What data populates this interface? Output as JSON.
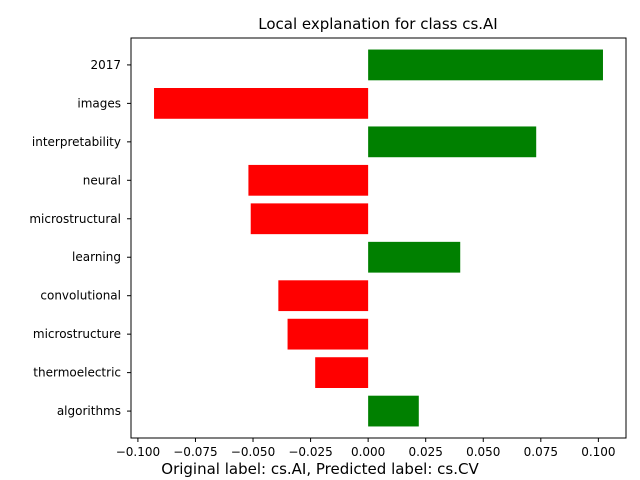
{
  "chart_data": {
    "type": "bar",
    "orientation": "horizontal",
    "title": "Local explanation for class cs.AI",
    "xlabel": "",
    "ylabel": "",
    "categories": [
      "2017",
      "images",
      "interpretability",
      "neural",
      "microstructural",
      "learning",
      "convolutional",
      "microstructure",
      "thermoelectric",
      "algorithms"
    ],
    "values": [
      0.102,
      -0.093,
      0.073,
      -0.052,
      -0.051,
      0.04,
      -0.039,
      -0.035,
      -0.023,
      0.022
    ],
    "xlim": [
      -0.103,
      0.112
    ],
    "xticks": [
      -0.1,
      -0.075,
      -0.05,
      -0.025,
      0.0,
      0.025,
      0.05,
      0.075,
      0.1
    ],
    "xtick_labels": [
      "−0.100",
      "−0.075",
      "−0.050",
      "−0.025",
      "0.000",
      "0.025",
      "0.050",
      "0.075",
      "0.100"
    ],
    "grid": false,
    "colors": {
      "positive": "#008000",
      "negative": "#ff0000"
    }
  },
  "caption": "Original label: cs.AI, Predicted label: cs.CV"
}
